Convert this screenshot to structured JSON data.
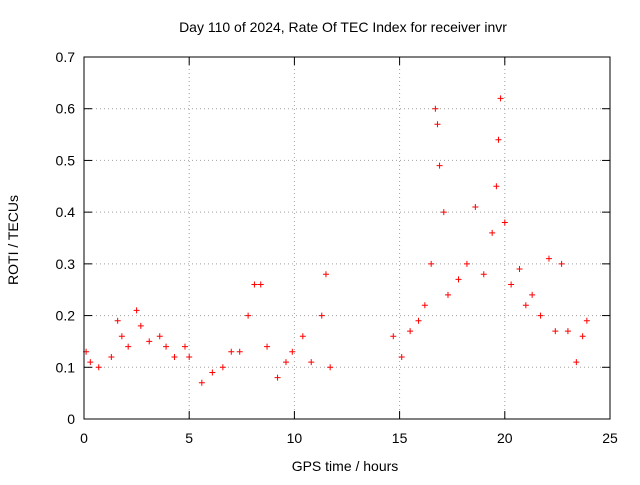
{
  "chart_data": {
    "type": "scatter",
    "title": "Day 110 of 2024, Rate Of TEC Index for receiver invr",
    "xlabel": "GPS time / hours",
    "ylabel": "ROTI / TECUs",
    "xlim": [
      0,
      25
    ],
    "ylim": [
      0,
      0.7
    ],
    "x_ticks": [
      "0",
      "5",
      "10",
      "15",
      "20",
      "25"
    ],
    "y_ticks": [
      "0",
      "0.1",
      "0.2",
      "0.3",
      "0.4",
      "0.5",
      "0.6",
      "0.7"
    ],
    "grid": true,
    "marker": "+",
    "colors": {
      "series": "#ff0000",
      "grid": "#a0a0a0",
      "axes": "#000000"
    },
    "series": [
      {
        "points": [
          [
            0.1,
            0.13
          ],
          [
            0.3,
            0.11
          ],
          [
            0.7,
            0.1
          ],
          [
            1.3,
            0.12
          ],
          [
            1.6,
            0.19
          ],
          [
            1.8,
            0.16
          ],
          [
            2.1,
            0.14
          ],
          [
            2.5,
            0.21
          ],
          [
            2.7,
            0.18
          ],
          [
            3.1,
            0.15
          ],
          [
            3.6,
            0.16
          ],
          [
            3.9,
            0.14
          ],
          [
            4.3,
            0.12
          ],
          [
            4.8,
            0.14
          ],
          [
            5.0,
            0.12
          ],
          [
            5.6,
            0.07
          ],
          [
            6.1,
            0.09
          ],
          [
            6.6,
            0.1
          ],
          [
            7.0,
            0.13
          ],
          [
            7.4,
            0.13
          ],
          [
            7.8,
            0.2
          ],
          [
            8.1,
            0.26
          ],
          [
            8.4,
            0.26
          ],
          [
            8.7,
            0.14
          ],
          [
            9.2,
            0.08
          ],
          [
            9.6,
            0.11
          ],
          [
            9.9,
            0.13
          ],
          [
            10.4,
            0.16
          ],
          [
            10.8,
            0.11
          ],
          [
            11.3,
            0.2
          ],
          [
            11.5,
            0.28
          ],
          [
            11.7,
            0.1
          ],
          [
            14.7,
            0.16
          ],
          [
            15.1,
            0.12
          ],
          [
            15.5,
            0.17
          ],
          [
            15.9,
            0.19
          ],
          [
            16.2,
            0.22
          ],
          [
            16.5,
            0.3
          ],
          [
            16.7,
            0.6
          ],
          [
            16.8,
            0.57
          ],
          [
            16.9,
            0.49
          ],
          [
            17.1,
            0.4
          ],
          [
            17.3,
            0.24
          ],
          [
            17.8,
            0.27
          ],
          [
            18.2,
            0.3
          ],
          [
            18.6,
            0.41
          ],
          [
            19.0,
            0.28
          ],
          [
            19.4,
            0.36
          ],
          [
            19.6,
            0.45
          ],
          [
            19.7,
            0.54
          ],
          [
            19.8,
            0.62
          ],
          [
            20.0,
            0.38
          ],
          [
            20.3,
            0.26
          ],
          [
            20.7,
            0.29
          ],
          [
            21.0,
            0.22
          ],
          [
            21.3,
            0.24
          ],
          [
            21.7,
            0.2
          ],
          [
            22.1,
            0.31
          ],
          [
            22.4,
            0.17
          ],
          [
            22.7,
            0.3
          ],
          [
            23.0,
            0.17
          ],
          [
            23.4,
            0.11
          ],
          [
            23.7,
            0.16
          ],
          [
            23.9,
            0.19
          ]
        ]
      }
    ]
  }
}
